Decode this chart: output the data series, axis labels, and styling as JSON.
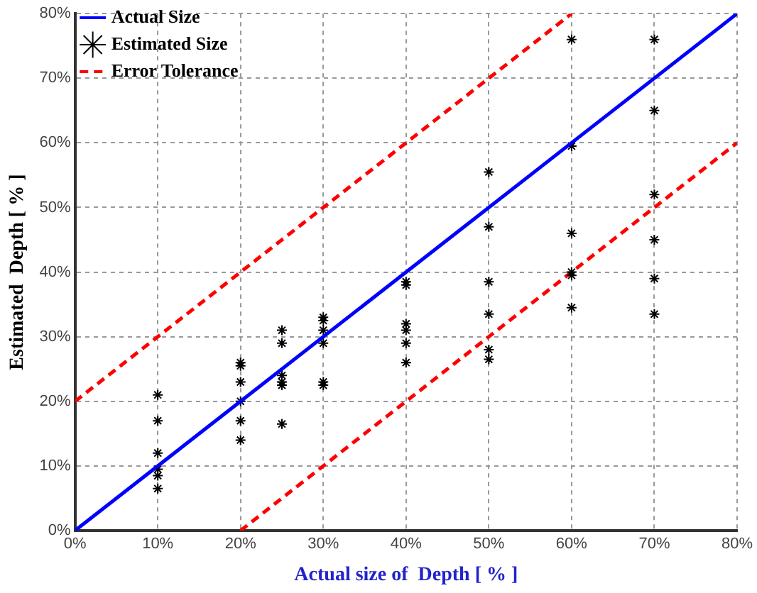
{
  "chart_data": {
    "type": "scatter",
    "xlabel": "Actual size of  Depth [ % ]",
    "ylabel": "Estimated  Depth [ % ]",
    "xlim": [
      0,
      80
    ],
    "ylim": [
      0,
      80
    ],
    "xticks": [
      {
        "value": 0,
        "label": "0%"
      },
      {
        "value": 10,
        "label": "10%"
      },
      {
        "value": 20,
        "label": "20%"
      },
      {
        "value": 30,
        "label": "30%"
      },
      {
        "value": 40,
        "label": "40%"
      },
      {
        "value": 50,
        "label": "50%"
      },
      {
        "value": 60,
        "label": "60%"
      },
      {
        "value": 70,
        "label": "70%"
      },
      {
        "value": 80,
        "label": "80%"
      }
    ],
    "yticks": [
      {
        "value": 0,
        "label": "0%"
      },
      {
        "value": 10,
        "label": "10%"
      },
      {
        "value": 20,
        "label": "20%"
      },
      {
        "value": 30,
        "label": "30%"
      },
      {
        "value": 40,
        "label": "40%"
      },
      {
        "value": 50,
        "label": "50%"
      },
      {
        "value": 60,
        "label": "60%"
      },
      {
        "value": 70,
        "label": "70%"
      },
      {
        "value": 80,
        "label": "80%"
      }
    ],
    "grid": true,
    "legend": "top left",
    "series": [
      {
        "name": "Actual Size",
        "type": "line",
        "color": "#0000ff",
        "line_style": "solid",
        "marker": "none",
        "x": [
          0,
          80
        ],
        "values": [
          0,
          80
        ]
      },
      {
        "name": "Estimated Size",
        "color": "#000000",
        "marker": "cross",
        "x": [
          10,
          10,
          10,
          10,
          10,
          10,
          20,
          20,
          20,
          20,
          20,
          20,
          25,
          25,
          25,
          25,
          25,
          25,
          30,
          30,
          30,
          30,
          30,
          30,
          40,
          40,
          40,
          40,
          40,
          40,
          50,
          50,
          50,
          50,
          50,
          50,
          60,
          60,
          60,
          60,
          60,
          60,
          70,
          70,
          70,
          70,
          70,
          70
        ],
        "values": [
          21,
          17,
          12,
          9.5,
          8.5,
          6.5,
          26,
          25.5,
          23,
          20,
          17,
          14,
          31,
          29,
          24,
          23,
          22.5,
          16.5,
          33,
          32.5,
          31,
          29,
          23,
          22.5,
          38.5,
          38,
          32,
          31,
          29,
          26,
          55.5,
          47,
          38.5,
          33.5,
          28,
          26.5,
          76,
          59.5,
          46,
          40,
          39.5,
          34.5,
          76,
          65,
          52,
          45,
          39,
          33.5
        ]
      },
      {
        "name": "Error Tolerance",
        "type": "line",
        "color": "#ff0000",
        "line_style": "dashed",
        "marker": "none",
        "x": [
          0,
          60
        ],
        "values": [
          20,
          80
        ]
      },
      {
        "type": "line",
        "color": "#ff0000",
        "line_style": "dashed",
        "marker": "none",
        "x": [
          20,
          80
        ],
        "values": [
          0,
          60
        ]
      }
    ]
  }
}
